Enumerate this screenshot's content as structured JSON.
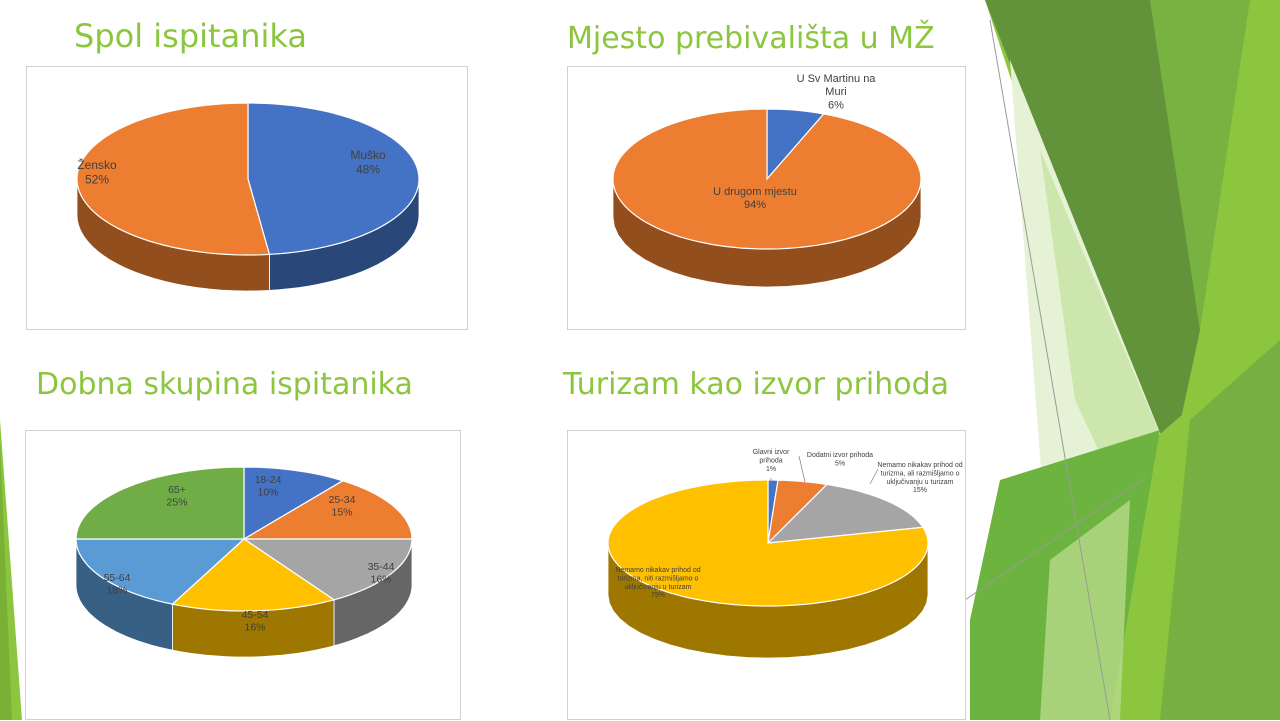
{
  "slide": {
    "accent_color": "#8cc63f"
  },
  "charts": [
    {
      "heading": "Spol ispitanika",
      "chart_data": {
        "type": "pie",
        "style": "3d",
        "title": "Spol ispitanika",
        "slices": [
          {
            "label": "Muško",
            "value": 48,
            "value_label": "48%",
            "color": "#4472c4"
          },
          {
            "label": "Žensko",
            "value": 52,
            "value_label": "52%",
            "color": "#ed7d31"
          }
        ]
      }
    },
    {
      "heading": "Mjesto prebivališta u MŽ",
      "chart_data": {
        "type": "pie",
        "style": "3d",
        "title": "Mjesto prebivališta u MŽ",
        "slices": [
          {
            "label": "U Sv Martinu na Muri",
            "value": 6,
            "value_label": "6%",
            "color": "#4472c4"
          },
          {
            "label": "U drugom mjestu",
            "value": 94,
            "value_label": "94%",
            "color": "#ed7d31"
          }
        ]
      }
    },
    {
      "heading": "Dobna skupina ispitanika",
      "chart_data": {
        "type": "pie",
        "style": "3d",
        "title": "Dobna skupina ispitanika",
        "slices": [
          {
            "label": "18-24",
            "value": 10,
            "value_label": "10%",
            "color": "#4472c4"
          },
          {
            "label": "25-34",
            "value": 15,
            "value_label": "15%",
            "color": "#ed7d31"
          },
          {
            "label": "35-44",
            "value": 16,
            "value_label": "16%",
            "color": "#a5a5a5"
          },
          {
            "label": "45-54",
            "value": 16,
            "value_label": "16%",
            "color": "#ffc000"
          },
          {
            "label": "55-64",
            "value": 18,
            "value_label": "18%",
            "color": "#5b9bd5"
          },
          {
            "label": "65+",
            "value": 25,
            "value_label": "25%",
            "color": "#70ad47"
          }
        ]
      }
    },
    {
      "heading": "Turizam kao izvor prihoda",
      "chart_data": {
        "type": "pie",
        "style": "3d",
        "title": "Turizam kao izvor prihoda",
        "slices": [
          {
            "label": "Glavni izvor prihoda",
            "value": 1,
            "value_label": "1%",
            "color": "#4472c4"
          },
          {
            "label": "Dodatni izvor prihoda",
            "value": 5,
            "value_label": "5%",
            "color": "#ed7d31"
          },
          {
            "label": "Nemamo nikakav prihod od turizma, ali razmišljamo o uključivanju u turizam",
            "value": 15,
            "value_label": "15%",
            "color": "#a5a5a5"
          },
          {
            "label": "Nemamo nikakav prihod od turizma, niti razmišljamo o uključivanju u turizam",
            "value": 79,
            "value_label": "79%",
            "color": "#ffc000"
          }
        ]
      }
    }
  ]
}
